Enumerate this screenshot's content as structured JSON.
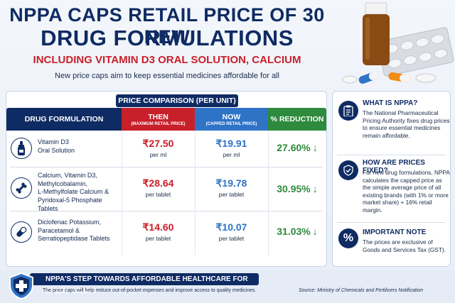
{
  "header": {
    "title_line1": "NPPA CAPS RETAIL PRICE OF 30 NEW",
    "title_line2": "DRUG FORMULATIONS",
    "subtitle": "INCLUDING VITAMIN D3 ORAL SOLUTION, CALCIUM",
    "tagline": "New price caps aim to keep essential medicines affordable for all"
  },
  "table": {
    "section_title": "PRICE COMPARISON (PER UNIT)",
    "columns": {
      "drug": "DRUG FORMULATION",
      "then": "THEN",
      "then_sub": "(MAXIMUM RETAIL PRICE)",
      "now": "NOW",
      "now_sub": "(CAPPED RETAIL PRICE)",
      "reduction": "% REDUCTION"
    },
    "rows": [
      {
        "icon": "dropper-bottle-icon",
        "name_lines": [
          "Vitamin D3",
          "Oral Solution"
        ],
        "then": "₹27.50",
        "then_unit": "per ml",
        "now": "₹19.91",
        "now_unit": "per ml",
        "reduction": "27.60%"
      },
      {
        "icon": "bone-icon",
        "name_lines": [
          "Calcium, Vitamin D3,",
          "Methylcobalamin,",
          "L-Methylfolate Calcium &",
          "Pyridoxal-5 Phosphate Tablets"
        ],
        "then": "₹28.64",
        "then_unit": "per tablet",
        "now": "₹19.78",
        "now_unit": "per tablet",
        "reduction": "30.95%"
      },
      {
        "icon": "capsule-icon",
        "name_lines": [
          "Diclofenac Potassium,",
          "Paracetamol &",
          "Serratiopeptidase Tablets"
        ],
        "then": "₹14.60",
        "then_unit": "per tablet",
        "now": "₹10.07",
        "now_unit": "per tablet",
        "reduction": "31.03%"
      }
    ]
  },
  "side": {
    "what": {
      "title": "WHAT IS NPPA?",
      "text": "The National Pharmaceutical Pricing Authority fixes drug prices to ensure essential medicines remain affordable."
    },
    "how": {
      "title": "HOW ARE PRICES FIXED?",
      "text": "For new drug formulations, NPPA calculates the capped price as the simple average price of all existing brands (with 1% or more market share) + 16% retail margin."
    },
    "note": {
      "title": "IMPORTANT NOTE",
      "text": "The prices are exclusive of Goods and Services Tax (GST).",
      "icon_glyph": "%"
    }
  },
  "footer": {
    "banner": "NPPA'S STEP TOWARDS AFFORDABLE HEALTHCARE FOR EVERY INDIAN",
    "text": "The price caps will help reduce out-of-pocket expenses and improve access to quality medicines.",
    "source": "Source: Ministry of Chemicals and Fertilisers Notification"
  },
  "colors": {
    "navy": "#0f2b63",
    "red": "#c8202a",
    "blue": "#2f73c7",
    "green": "#2e8a3c"
  }
}
